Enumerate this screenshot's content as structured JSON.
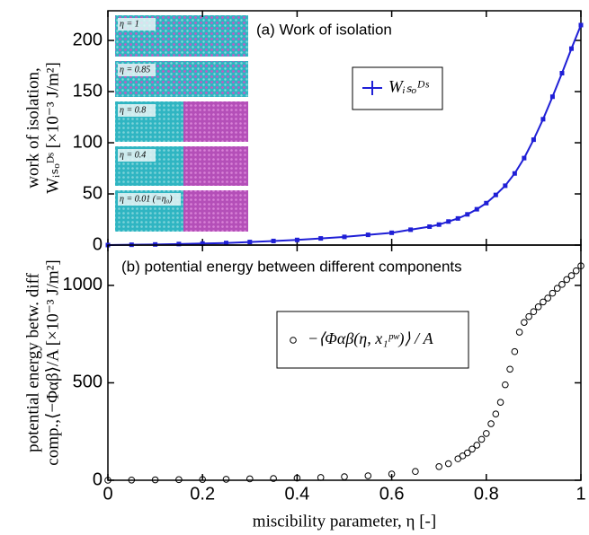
{
  "chart_data": [
    {
      "type": "line",
      "title": "(a) Work of isolation",
      "ylabel": [
        "work of isolation,",
        "Wᵢₛₒᴰˢ [×10⁻³ J/m²]"
      ],
      "ylim": [
        0,
        229
      ],
      "yticks": [
        0,
        50,
        100,
        150,
        200
      ],
      "insets": [
        "η = 1",
        "η = 0.85",
        "η = 0.8",
        "η = 0.4",
        "η = 0.01 (=η₀)"
      ],
      "series": [
        {
          "name": "Wᵢₛₒᴰˢ",
          "color": "#1f1fd6",
          "x": [
            0,
            0.05,
            0.1,
            0.15,
            0.2,
            0.25,
            0.3,
            0.35,
            0.4,
            0.45,
            0.5,
            0.55,
            0.6,
            0.64,
            0.68,
            0.7,
            0.72,
            0.74,
            0.76,
            0.78,
            0.8,
            0.82,
            0.84,
            0.86,
            0.88,
            0.9,
            0.92,
            0.94,
            0.96,
            0.98,
            1.0
          ],
          "values": [
            0,
            0.3,
            0.6,
            1,
            1.5,
            2,
            3,
            4,
            5,
            6.5,
            8,
            10,
            12,
            15,
            18,
            20,
            23,
            26,
            30,
            35,
            41,
            49,
            58,
            70,
            85,
            103,
            123,
            145,
            168,
            192,
            215
          ]
        }
      ]
    },
    {
      "type": "scatter",
      "title": "(b) potential energy between different components",
      "xlabel": "miscibility parameter, η [-]",
      "ylabel": [
        "potential energy betw. diff",
        "comp.,⟨−Φαβ⟩/A [×10⁻³ J/m²]"
      ],
      "xlim": [
        0,
        1
      ],
      "xticks": [
        0,
        0.2,
        0.4,
        0.6,
        0.8,
        1
      ],
      "ylim": [
        0,
        1207
      ],
      "yticks": [
        0,
        500,
        1000
      ],
      "series": [
        {
          "name": "−⟨Φαβ(η, x₁ᵖʷ)⟩ / A",
          "color": "#000000",
          "x": [
            0,
            0.05,
            0.1,
            0.15,
            0.2,
            0.25,
            0.3,
            0.35,
            0.4,
            0.45,
            0.5,
            0.55,
            0.6,
            0.65,
            0.7,
            0.72,
            0.74,
            0.75,
            0.76,
            0.77,
            0.78,
            0.79,
            0.8,
            0.81,
            0.82,
            0.83,
            0.84,
            0.85,
            0.86,
            0.87,
            0.88,
            0.89,
            0.9,
            0.91,
            0.92,
            0.93,
            0.94,
            0.95,
            0.96,
            0.97,
            0.98,
            0.99,
            1.0
          ],
          "values": [
            0,
            1,
            2,
            3,
            4,
            5,
            7,
            9,
            11,
            14,
            18,
            23,
            32,
            45,
            70,
            85,
            110,
            125,
            140,
            160,
            180,
            210,
            240,
            290,
            340,
            400,
            490,
            570,
            660,
            760,
            810,
            840,
            865,
            890,
            915,
            935,
            960,
            985,
            1005,
            1030,
            1050,
            1075,
            1100
          ]
        }
      ]
    }
  ]
}
